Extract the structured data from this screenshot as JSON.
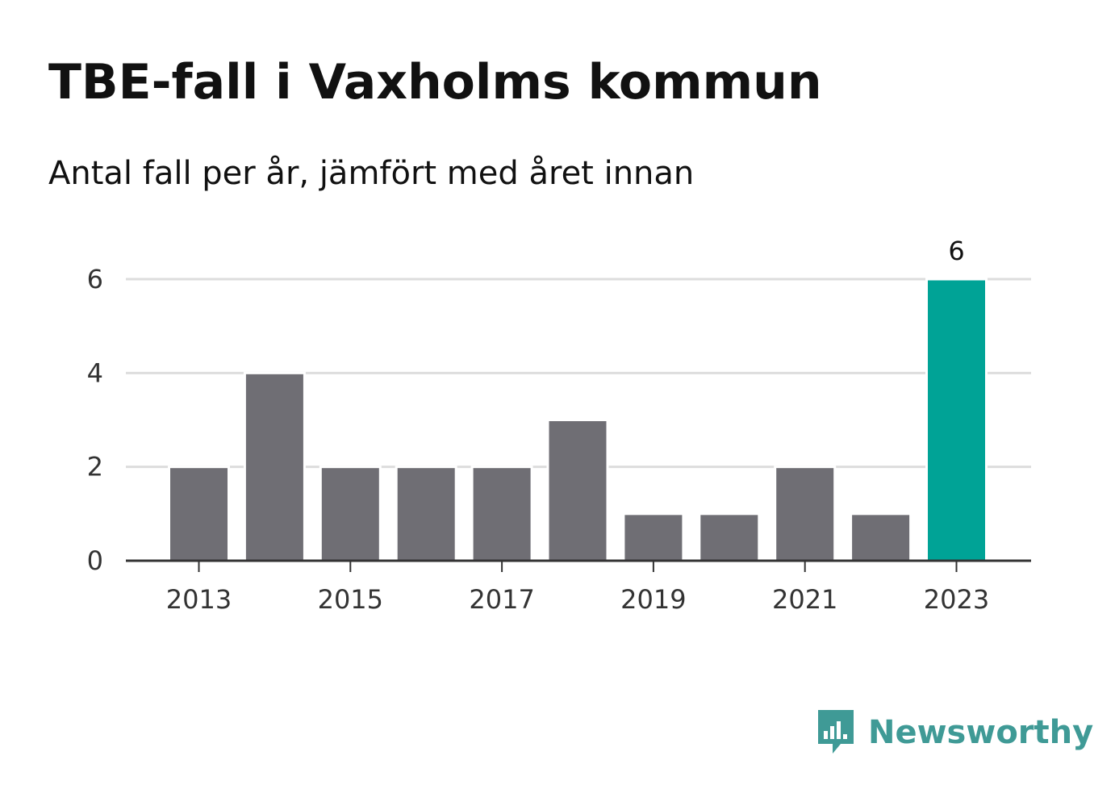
{
  "header": {
    "title": "TBE-fall i Vaxholms kommun",
    "subtitle": "Antal fall per år, jämfört med året innan"
  },
  "brand": {
    "name": "Newsworthy",
    "icon": "bar-chart-speech-bubble-icon",
    "color": "#3f9a96"
  },
  "chart_data": {
    "type": "bar",
    "categories": [
      2013,
      2014,
      2015,
      2016,
      2017,
      2018,
      2019,
      2020,
      2021,
      2022,
      2023
    ],
    "values": [
      2,
      4,
      2,
      2,
      2,
      3,
      1,
      1,
      2,
      1,
      6
    ],
    "title": "TBE-fall i Vaxholms kommun",
    "subtitle": "Antal fall per år, jämfört med året innan",
    "xlabel": "",
    "ylabel": "",
    "ylim": [
      0,
      6
    ],
    "yticks": [
      0,
      2,
      4,
      6
    ],
    "xticks": [
      2013,
      2015,
      2017,
      2019,
      2021,
      2023
    ],
    "grid": true,
    "legend": "none",
    "highlight": {
      "category": 2023,
      "label": "6"
    },
    "colors": {
      "default": "#6f6e74",
      "highlight": "#00a396",
      "grid": "#dddddd",
      "axis": "#333333"
    }
  }
}
